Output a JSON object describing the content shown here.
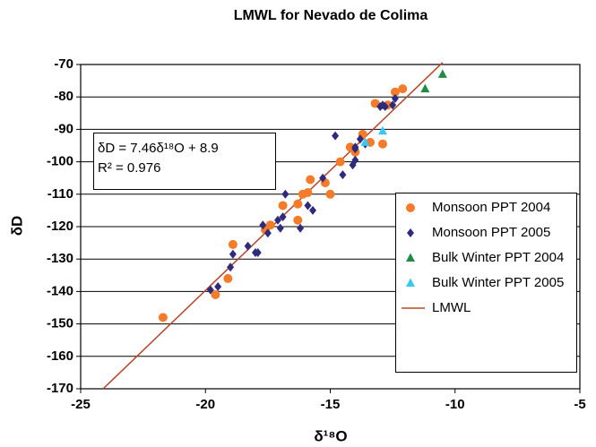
{
  "chart_data": {
    "type": "scatter",
    "title": "LMWL for Nevado de Colima",
    "x_label": "δ¹⁸O",
    "y_label": "δD",
    "annotation": [
      "δD = 7.46δ¹⁸O + 8.9",
      "R² = 0.976"
    ],
    "xlim": [
      -25,
      -5
    ],
    "xticks": [
      -25,
      -20,
      -15,
      -10,
      -5
    ],
    "ylim": [
      -170,
      -70
    ],
    "yticks": [
      -70,
      -80,
      -90,
      -100,
      -110,
      -120,
      -130,
      -140,
      -150,
      -160,
      -170
    ],
    "grid": true,
    "legend": "right",
    "series": [
      {
        "name": "Monsoon PPT 2004",
        "color": "#f47b2a",
        "marker": "circle",
        "x": [
          -21.7,
          -19.6,
          -19.1,
          -18.9,
          -17.6,
          -17.4,
          -16.9,
          -16.3,
          -16.3,
          -16.1,
          -15.9,
          -15.8,
          -15.2,
          -15.0,
          -14.6,
          -14.2,
          -14.0,
          -13.7,
          -13.4,
          -13.2,
          -12.9,
          -12.7,
          -12.4,
          -12.1
        ],
        "values": [
          -148,
          -141,
          -136,
          -125.5,
          -121,
          -119.5,
          -113.5,
          -118,
          -113,
          -110,
          -109.5,
          -105.5,
          -106.5,
          -110,
          -100,
          -95.5,
          -97,
          -91.5,
          -94,
          -82,
          -94.5,
          -82.5,
          -78.5,
          -77.5
        ]
      },
      {
        "name": "Monsoon PPT 2005",
        "color": "#2e2b7c",
        "marker": "diamond",
        "x": [
          -19.8,
          -19.5,
          -19.0,
          -18.9,
          -18.3,
          -18.0,
          -17.9,
          -17.7,
          -17.5,
          -17.1,
          -17.0,
          -16.8,
          -16.9,
          -16.2,
          -15.9,
          -15.7,
          -15.3,
          -14.8,
          -14.5,
          -14.1,
          -14.0,
          -14.0,
          -13.8,
          -13.6,
          -13.0,
          -12.8,
          -12.5,
          -12.4,
          -14.0,
          -12.9
        ],
        "values": [
          -139.5,
          -138.5,
          -132.5,
          -128.5,
          -126,
          -128,
          -128,
          -119.5,
          -122,
          -118,
          -120.5,
          -110,
          -117,
          -120.5,
          -113.5,
          -115,
          -105,
          -92,
          -104,
          -101,
          -99.5,
          -96,
          -93,
          -94.5,
          -83,
          -83,
          -82.5,
          -80.5,
          -95.5,
          -82.5
        ]
      },
      {
        "name": "Bulk Winter PPT 2004",
        "color": "#1f8b45",
        "marker": "triangle",
        "x": [
          -11.2,
          -10.5
        ],
        "values": [
          -77.5,
          -73
        ]
      },
      {
        "name": "Bulk Winter PPT 2005",
        "color": "#3cc7f1",
        "marker": "triangle",
        "x": [
          -13.6,
          -12.9
        ],
        "values": [
          -94,
          -90.5
        ]
      },
      {
        "name": "LMWL",
        "color": "#b5462a",
        "marker": "line",
        "x": [
          -24.1,
          -10.5
        ],
        "values": [
          -170,
          -69.4
        ]
      }
    ]
  }
}
